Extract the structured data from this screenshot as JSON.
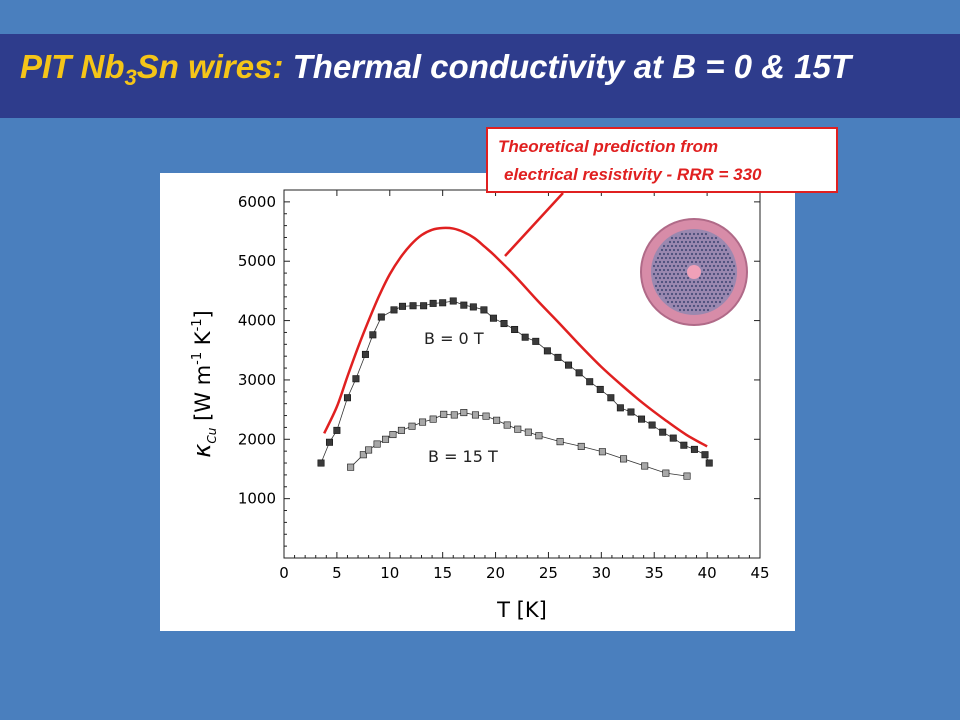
{
  "slide": {
    "title_prefix_main": "PIT Nb",
    "title_prefix_sub": "3",
    "title_prefix_end": "Sn wires:",
    "title_rest": " Thermal conductivity at B = 0 & 15T",
    "background_color": "#4a7fbe",
    "title_bar_color": "#2e3c8c",
    "title_accent_color": "#f5c518"
  },
  "callout": {
    "line1": "Theoretical prediction from",
    "line2": "electrical resistivity  - RRR = 330",
    "color": "#e02020"
  },
  "chart_data": {
    "type": "scatter",
    "xlabel": "T [K]",
    "ylabel_symbol": "κ",
    "ylabel_subscript": "Cu",
    "ylabel_units": "[W m",
    "ylabel_exp1": "-1",
    "ylabel_mid": " K",
    "ylabel_exp2": "-1",
    "ylabel_close": "]",
    "xlim": [
      0,
      45
    ],
    "ylim": [
      0,
      6200
    ],
    "xticks": [
      0,
      5,
      10,
      15,
      20,
      25,
      30,
      35,
      40,
      45
    ],
    "yticks": [
      1000,
      2000,
      3000,
      4000,
      5000,
      6000
    ],
    "grid": false,
    "series": [
      {
        "name": "B = 0 T",
        "marker_color": "#3a3a3a",
        "x": [
          3.5,
          4.3,
          5.0,
          6.0,
          6.8,
          7.7,
          8.4,
          9.2,
          10.4,
          11.2,
          12.2,
          13.2,
          14.1,
          15.0,
          16.0,
          17.0,
          17.9,
          18.9,
          19.8,
          20.8,
          21.8,
          22.8,
          23.8,
          24.9,
          25.9,
          26.9,
          27.9,
          28.9,
          29.9,
          30.9,
          31.8,
          32.8,
          33.8,
          34.8,
          35.8,
          36.8,
          37.8,
          38.8,
          39.8,
          40.2
        ],
        "y": [
          1600,
          1950,
          2150,
          2700,
          3020,
          3430,
          3760,
          4060,
          4180,
          4240,
          4250,
          4250,
          4290,
          4300,
          4330,
          4260,
          4230,
          4180,
          4040,
          3950,
          3850,
          3720,
          3650,
          3490,
          3380,
          3250,
          3120,
          2970,
          2840,
          2700,
          2530,
          2460,
          2340,
          2240,
          2120,
          2020,
          1900,
          1830,
          1740,
          1600
        ]
      },
      {
        "name": "B = 15 T",
        "marker_color": "#a8a8a8",
        "x": [
          6.3,
          7.5,
          8.0,
          8.8,
          9.6,
          10.3,
          11.1,
          12.1,
          13.1,
          14.1,
          15.1,
          16.1,
          17.0,
          18.1,
          19.1,
          20.1,
          21.1,
          22.1,
          23.1,
          24.1,
          26.1,
          28.1,
          30.1,
          32.1,
          34.1,
          36.1,
          38.1
        ],
        "y": [
          1530,
          1740,
          1820,
          1920,
          2000,
          2080,
          2150,
          2220,
          2290,
          2340,
          2420,
          2410,
          2450,
          2410,
          2390,
          2320,
          2240,
          2170,
          2120,
          2060,
          1960,
          1880,
          1790,
          1670,
          1550,
          1430,
          1380
        ]
      }
    ],
    "theory_curve": {
      "color": "#e02020",
      "x": [
        3.8,
        5,
        6,
        7,
        8,
        9,
        10,
        11,
        12,
        13,
        14,
        15,
        16,
        17,
        18,
        19,
        20,
        22,
        24,
        26,
        28,
        30,
        32,
        34,
        36,
        38,
        40
      ],
      "y": [
        2100,
        2550,
        3060,
        3550,
        4000,
        4420,
        4780,
        5060,
        5280,
        5440,
        5530,
        5560,
        5550,
        5490,
        5390,
        5240,
        5080,
        4720,
        4330,
        3960,
        3580,
        3220,
        2900,
        2600,
        2330,
        2080,
        1880
      ]
    }
  }
}
